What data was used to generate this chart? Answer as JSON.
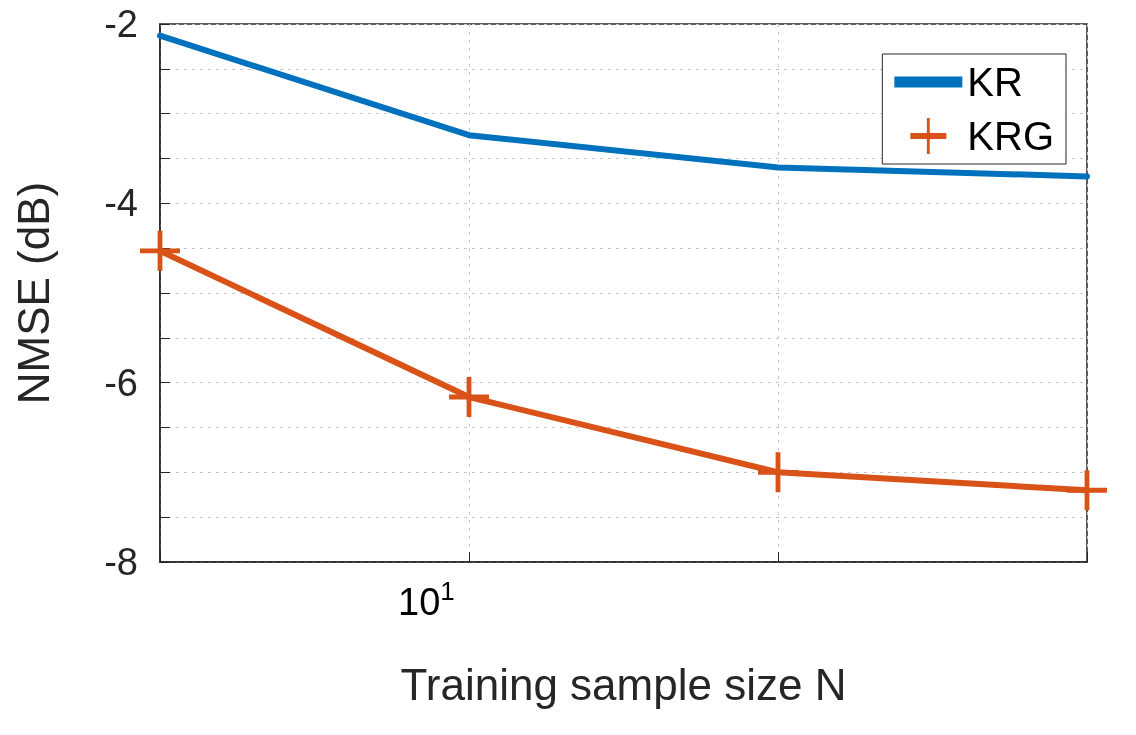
{
  "chart_data": {
    "type": "line",
    "xlabel": "Training sample size N",
    "ylabel": "NMSE (dB)",
    "categories": [
      null,
      null,
      null,
      null
    ],
    "series": [
      {
        "name": "KR",
        "color": "#0072bd",
        "marker": "none",
        "values": [
          -2.13,
          -3.24,
          -3.6,
          -3.7
        ]
      },
      {
        "name": "KRG",
        "color": "#d95319",
        "marker": "cross",
        "values": [
          -4.53,
          -6.16,
          -7.0,
          -7.2
        ]
      }
    ],
    "annotations": [
      "10$^{1}$"
    ],
    "ylim": [
      -8,
      -2
    ],
    "yticks": [
      -8,
      {
        "value": -7.5,
        "label": null
      },
      {
        "value": -7,
        "label": null
      },
      {
        "value": -6.5,
        "label": null
      },
      -6,
      {
        "value": -5.5,
        "label": null
      },
      {
        "value": -5,
        "label": null
      },
      {
        "value": -4.5,
        "label": null
      },
      -4,
      {
        "value": -3.5,
        "label": null
      },
      {
        "value": -3,
        "label": null
      },
      {
        "value": -2.5,
        "label": null
      },
      -2
    ],
    "grid": true,
    "legend": "top right",
    "line_style": "solid"
  }
}
